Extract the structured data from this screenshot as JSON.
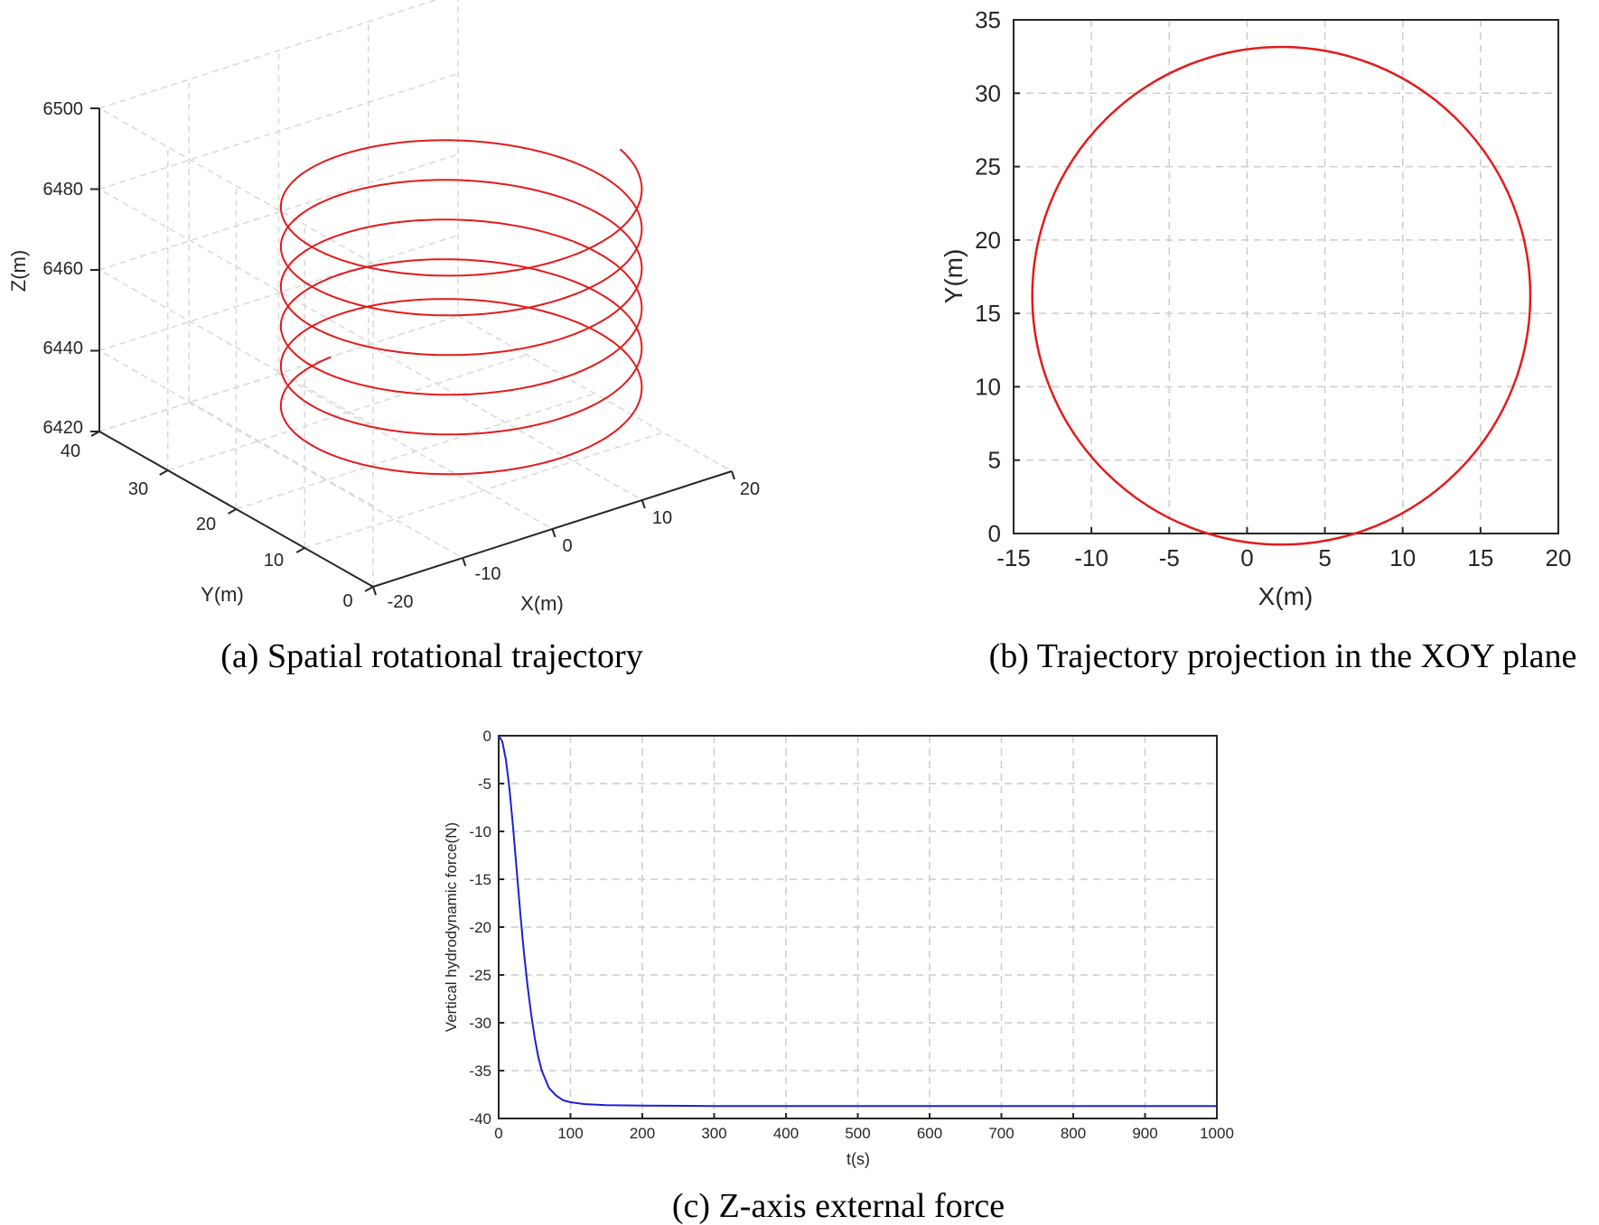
{
  "chart_data": [
    {
      "type": "line",
      "panel": "a",
      "caption": "(a)  Spatial rotational trajectory",
      "xlabel": "X(m)",
      "ylabel": "Y(m)",
      "zlabel": "Z(m)",
      "xlim": [
        -20,
        20
      ],
      "ylim": [
        0,
        40
      ],
      "zlim": [
        6420,
        6500
      ],
      "x_ticks": [
        "-20",
        "-10",
        "0",
        "10",
        "20"
      ],
      "y_ticks": [
        "0",
        "10",
        "20",
        "30",
        "40"
      ],
      "z_ticks": [
        "6420",
        "6440",
        "6460",
        "6480",
        "6500"
      ],
      "series": [
        {
          "color": "#e41a1c",
          "center_x": 2.2,
          "center_y": 16.2,
          "radius": 16,
          "z_start": 6432,
          "z_end": 6488,
          "turns": 5.7
        }
      ],
      "grid": true
    },
    {
      "type": "line",
      "panel": "b",
      "caption": "(b)  Trajectory projection in the XOY plane",
      "xlabel": "X(m)",
      "ylabel": "Y(m)",
      "xlim": [
        -15,
        20
      ],
      "ylim": [
        0,
        35
      ],
      "x_ticks": [
        -15,
        -10,
        -5,
        0,
        5,
        10,
        15,
        20
      ],
      "y_ticks": [
        0,
        5,
        10,
        15,
        20,
        25,
        30,
        35
      ],
      "series": [
        {
          "color": "#e41a1c",
          "center_x": 2.2,
          "center_y": 16.2,
          "radius": 16
        }
      ],
      "grid": true
    },
    {
      "type": "line",
      "panel": "c",
      "caption": "(c)  Z-axis external force",
      "xlabel": "t(s)",
      "ylabel": "Vertical hydrodynamic force(N)",
      "xlim": [
        0,
        1000
      ],
      "ylim": [
        -40,
        0
      ],
      "x_ticks": [
        0,
        100,
        200,
        300,
        400,
        500,
        600,
        700,
        800,
        900,
        1000
      ],
      "y_ticks": [
        0,
        -5,
        -10,
        -15,
        -20,
        -25,
        -30,
        -35,
        -40
      ],
      "series": [
        {
          "color": "#1f1fd6",
          "x": [
            0,
            5,
            10,
            15,
            20,
            25,
            30,
            35,
            40,
            45,
            50,
            55,
            60,
            70,
            80,
            90,
            100,
            120,
            150,
            200,
            300,
            500,
            1000
          ],
          "y": [
            0,
            -0.6,
            -2.5,
            -5.5,
            -9.5,
            -14,
            -18.5,
            -22.5,
            -26,
            -29,
            -31.5,
            -33.5,
            -35,
            -36.8,
            -37.6,
            -38.1,
            -38.3,
            -38.5,
            -38.6,
            -38.65,
            -38.7,
            -38.7,
            -38.7
          ]
        }
      ],
      "grid": true
    }
  ]
}
